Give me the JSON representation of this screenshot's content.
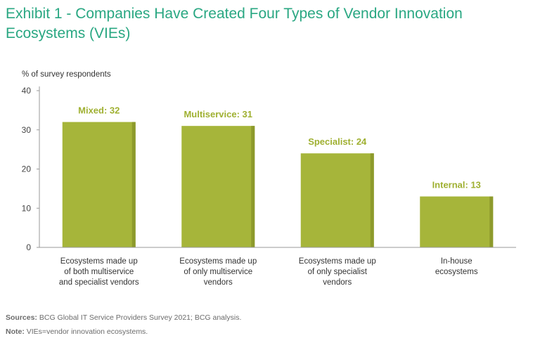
{
  "title": "Exhibit 1 - Companies Have Created Four Types of Vendor Innovation Ecosystems (VIEs)",
  "colors": {
    "bar": "#a6b53a",
    "bar_side": "#8d9a2c",
    "label": "#9fb031",
    "title": "#29a782"
  },
  "chart_data": {
    "type": "bar",
    "ylabel": "% of survey respondents",
    "ylim": [
      0,
      40
    ],
    "yticks": [
      0,
      10,
      20,
      30,
      40
    ],
    "categories": [
      [
        "Ecosystems made up",
        "of both multiservice",
        "and specialist vendors"
      ],
      [
        "Ecosystems made up",
        "of only multiservice",
        "vendors"
      ],
      [
        "Ecosystems made up",
        "of only specialist",
        "vendors"
      ],
      [
        "In-house",
        "ecosystems"
      ]
    ],
    "values": [
      32,
      31,
      24,
      13
    ],
    "data_labels": [
      "Mixed: 32",
      "Multiservice: 31",
      "Specialist: 24",
      "Internal: 13"
    ]
  },
  "footer": {
    "sources_label": "Sources:",
    "sources_text": " BCG Global IT Service Providers Survey 2021; BCG analysis.",
    "note_label": "Note:",
    "note_text": " VIEs=vendor innovation ecosystems."
  }
}
